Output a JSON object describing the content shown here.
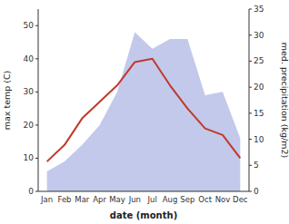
{
  "chart_data": {
    "type": "line",
    "xlabel": "date (month)",
    "ylabel": "max temp (C)",
    "y2label": "med. precipitation (kg/m2)",
    "categories": [
      "Jan",
      "Feb",
      "Mar",
      "Apr",
      "May",
      "Jun",
      "Jul",
      "Aug",
      "Sep",
      "Oct",
      "Nov",
      "Dec"
    ],
    "series": [
      {
        "type": "area",
        "color": "#b8c0e8",
        "values": [
          6,
          9,
          14,
          20,
          30,
          48,
          43,
          46,
          46,
          29,
          30,
          16
        ]
      },
      {
        "type": "line",
        "color": "#c0392b",
        "values": [
          9,
          14,
          22,
          27,
          32,
          39,
          40,
          32,
          25,
          19,
          17,
          10
        ]
      }
    ],
    "ylim": [
      0,
      55
    ],
    "yticks": [
      0,
      10,
      20,
      30,
      40,
      50
    ],
    "y2lim": [
      0,
      35
    ],
    "y2ticks": [
      0,
      5,
      10,
      15,
      20,
      25,
      30,
      35
    ],
    "grid": false
  }
}
